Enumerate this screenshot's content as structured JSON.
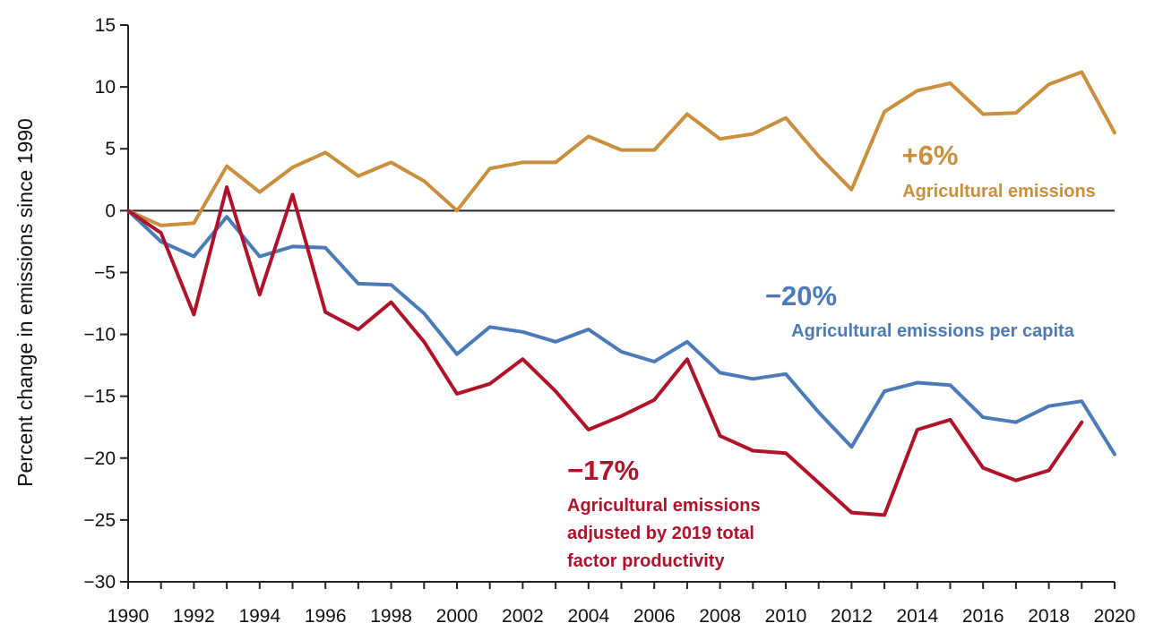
{
  "chart_data": {
    "type": "line",
    "ylabel": "Percent change in emissions since 1990",
    "xlabel": "",
    "title": "",
    "xlim": [
      1990,
      2020
    ],
    "ylim": [
      -30,
      15
    ],
    "x_ticks": [
      "1990",
      "1992",
      "1994",
      "1996",
      "1998",
      "2000",
      "2002",
      "2004",
      "2006",
      "2008",
      "2010",
      "2012",
      "2014",
      "2016",
      "2018",
      "2020"
    ],
    "y_ticks": [
      "15",
      "10",
      "5",
      "0",
      "−5",
      "−10",
      "−15",
      "−20",
      "−25",
      "−30"
    ],
    "grid": false,
    "series": [
      {
        "name": "Agricultural emissions",
        "color": "#c98f3c",
        "x": [
          1990,
          1991,
          1992,
          1993,
          1994,
          1995,
          1996,
          1997,
          1998,
          1999,
          2000,
          2001,
          2002,
          2003,
          2004,
          2005,
          2006,
          2007,
          2008,
          2009,
          2010,
          2011,
          2012,
          2013,
          2014,
          2015,
          2016,
          2017,
          2018,
          2019,
          2020
        ],
        "values": [
          0,
          -1.2,
          -1.0,
          3.6,
          1.5,
          3.5,
          4.7,
          2.8,
          3.9,
          2.4,
          0,
          3.4,
          3.9,
          3.9,
          6.0,
          4.9,
          4.9,
          7.8,
          5.8,
          6.2,
          7.5,
          4.4,
          1.7,
          8.0,
          9.7,
          10.3,
          7.8,
          7.9,
          10.2,
          11.2,
          6.3
        ],
        "annotation_value": "+6%",
        "annotation_label": "Agricultural emissions"
      },
      {
        "name": "Agricultural emissions per capita",
        "color": "#4a7ab8",
        "x": [
          1990,
          1991,
          1992,
          1993,
          1994,
          1995,
          1996,
          1997,
          1998,
          1999,
          2000,
          2001,
          2002,
          2003,
          2004,
          2005,
          2006,
          2007,
          2008,
          2009,
          2010,
          2011,
          2012,
          2013,
          2014,
          2015,
          2016,
          2017,
          2018,
          2019,
          2020
        ],
        "values": [
          0,
          -2.5,
          -3.7,
          -0.5,
          -3.7,
          -2.9,
          -3.0,
          -5.9,
          -6.0,
          -8.3,
          -11.6,
          -9.4,
          -9.8,
          -10.6,
          -9.6,
          -11.4,
          -12.2,
          -10.6,
          -13.1,
          -13.6,
          -13.2,
          -16.3,
          -19.1,
          -14.6,
          -13.9,
          -14.1,
          -16.7,
          -17.1,
          -15.8,
          -15.4,
          -19.7
        ],
        "annotation_value": "−20%",
        "annotation_label": "Agricultural emissions per capita"
      },
      {
        "name": "Agricultural emissions adjusted by 2019 total factor productivity",
        "color": "#b0122a",
        "x": [
          1990,
          1991,
          1992,
          1993,
          1994,
          1995,
          1996,
          1997,
          1998,
          1999,
          2000,
          2001,
          2002,
          2003,
          2004,
          2005,
          2006,
          2007,
          2008,
          2009,
          2010,
          2011,
          2012,
          2013,
          2014,
          2015,
          2016,
          2017,
          2018,
          2019
        ],
        "values": [
          0,
          -1.8,
          -8.4,
          1.9,
          -6.8,
          1.3,
          -8.2,
          -9.6,
          -7.4,
          -10.6,
          -14.8,
          -14.0,
          -12.0,
          -14.6,
          -17.7,
          -16.6,
          -15.3,
          -12.0,
          -18.2,
          -19.4,
          -19.6,
          -22.0,
          -24.4,
          -24.6,
          -17.7,
          -16.9,
          -20.8,
          -21.8,
          -21.0,
          -17.1
        ],
        "annotation_value": "−17%",
        "annotation_lines": [
          "Agricultural emissions",
          "adjusted by 2019 total",
          "factor productivity"
        ]
      }
    ]
  }
}
